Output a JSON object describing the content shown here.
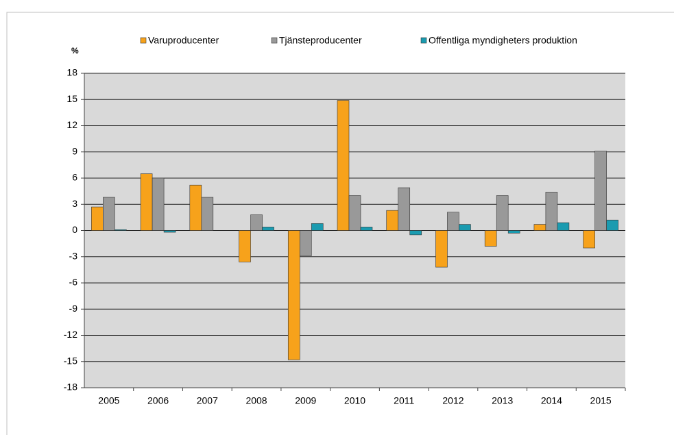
{
  "chart_data": {
    "type": "bar",
    "y_label": "%",
    "categories": [
      "2005",
      "2006",
      "2007",
      "2008",
      "2009",
      "2010",
      "2011",
      "2012",
      "2013",
      "2014",
      "2015"
    ],
    "series": [
      {
        "name": "Varuproducenter",
        "color": "#f7a21b",
        "values": [
          2.7,
          6.5,
          5.2,
          -3.6,
          -14.8,
          14.9,
          2.3,
          -4.2,
          -1.8,
          0.7,
          -2.0
        ]
      },
      {
        "name": "Tjänsteproducenter",
        "color": "#999999",
        "values": [
          3.8,
          6.0,
          3.8,
          1.8,
          -2.9,
          4.0,
          4.9,
          2.1,
          4.0,
          4.4,
          9.1
        ]
      },
      {
        "name": "Offentliga myndigheters produktion",
        "color": "#1a9bb0",
        "values": [
          0.1,
          -0.2,
          0,
          0.4,
          0.8,
          0.4,
          -0.5,
          0.7,
          -0.3,
          0.9,
          1.2
        ]
      }
    ],
    "ylim": [
      -18,
      18
    ],
    "yticks": [
      -18,
      -15,
      -12,
      -9,
      -6,
      -3,
      0,
      3,
      6,
      9,
      12,
      15,
      18
    ],
    "grid": true,
    "legend": "top"
  }
}
